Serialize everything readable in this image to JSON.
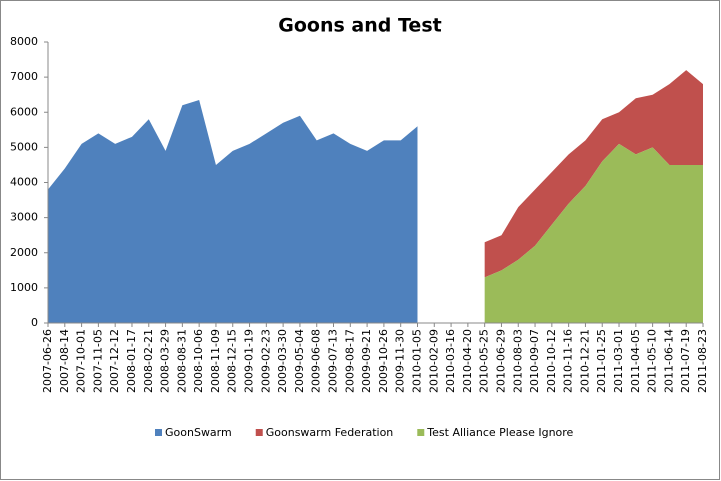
{
  "chart_data": {
    "type": "area",
    "title": "Goons and Test",
    "categories": [
      "2007-06-26",
      "2007-08-14",
      "2007-10-01",
      "2007-11-05",
      "2007-12-12",
      "2008-01-17",
      "2008-02-21",
      "2008-03-29",
      "2008-08-31",
      "2008-10-06",
      "2008-11-09",
      "2008-12-15",
      "2009-01-19",
      "2009-02-23",
      "2009-03-30",
      "2009-05-04",
      "2009-06-08",
      "2009-07-13",
      "2009-08-17",
      "2009-09-21",
      "2009-10-26",
      "2009-11-30",
      "2010-01-05",
      "2010-02-09",
      "2010-03-16",
      "2010-04-20",
      "2010-05-25",
      "2010-06-29",
      "2010-08-03",
      "2010-09-07",
      "2010-10-12",
      "2010-11-16",
      "2010-12-21",
      "2011-01-25",
      "2011-03-01",
      "2011-04-05",
      "2011-05-10",
      "2011-06-14",
      "2011-07-19",
      "2011-08-23"
    ],
    "series": [
      {
        "name": "GoonSwarm",
        "color": "#4f81bd",
        "values": [
          3800,
          4400,
          5100,
          5400,
          5100,
          5300,
          5800,
          4900,
          6200,
          6350,
          4500,
          4900,
          5100,
          5400,
          5700,
          5900,
          5200,
          5400,
          5100,
          4900,
          5200,
          5200,
          5600,
          null,
          null,
          null,
          null,
          null,
          null,
          null,
          null,
          null,
          null,
          null,
          null,
          null,
          null,
          null,
          null,
          null
        ]
      },
      {
        "name": "Goonswarm Federation",
        "color": "#c0504d",
        "values": [
          null,
          null,
          null,
          null,
          null,
          null,
          null,
          null,
          null,
          null,
          null,
          null,
          null,
          null,
          null,
          null,
          null,
          null,
          null,
          null,
          null,
          null,
          null,
          null,
          null,
          null,
          1000,
          1000,
          1500,
          1600,
          1500,
          1400,
          1300,
          1200,
          900,
          1600,
          1500,
          2300,
          2700,
          2300
        ]
      },
      {
        "name": "Test Alliance Please Ignore",
        "color": "#9bbb59",
        "values": [
          null,
          null,
          null,
          null,
          null,
          null,
          null,
          null,
          null,
          null,
          null,
          null,
          null,
          null,
          null,
          null,
          null,
          null,
          null,
          null,
          null,
          null,
          null,
          null,
          null,
          null,
          1300,
          1500,
          1800,
          2200,
          2800,
          3400,
          3900,
          4600,
          5100,
          4800,
          5000,
          4500,
          4500,
          4500
        ]
      }
    ],
    "ylim": [
      0,
      8000
    ],
    "yticks": [
      0,
      1000,
      2000,
      3000,
      4000,
      5000,
      6000,
      7000,
      8000
    ],
    "grid": false,
    "legend": "bottom"
  }
}
